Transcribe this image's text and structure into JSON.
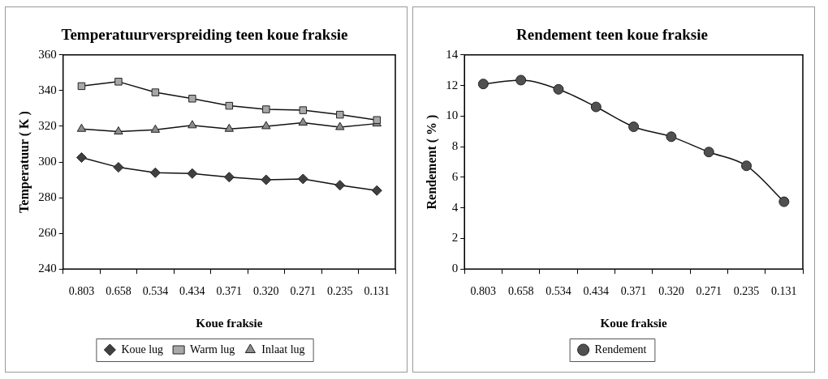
{
  "chart_data": [
    {
      "type": "line",
      "title": "Temperatuurverspreiding teen koue fraksie",
      "xlabel": "Koue fraksie",
      "ylabel": "Temperatuur ( K )",
      "categories": [
        "0.803",
        "0.658",
        "0.534",
        "0.434",
        "0.371",
        "0.320",
        "0.271",
        "0.235",
        "0.131"
      ],
      "series": [
        {
          "name": "Koue lug",
          "color": "#404040",
          "marker": "diamond",
          "values": [
            302.5,
            297,
            294,
            293.5,
            291.5,
            290,
            290.5,
            287,
            284
          ]
        },
        {
          "name": "Warm lug",
          "color": "#a8a8a8",
          "marker": "square",
          "values": [
            342.5,
            345,
            339,
            335.5,
            331.5,
            329.5,
            329,
            326.5,
            323.5
          ]
        },
        {
          "name": "Inlaat lug",
          "color": "#8c8c8c",
          "marker": "triangle",
          "values": [
            318.5,
            317,
            318,
            320.5,
            318.5,
            320,
            322,
            319.5,
            321.5
          ]
        }
      ],
      "ylim": [
        240,
        360
      ],
      "yticks": [
        240,
        260,
        280,
        300,
        320,
        340,
        360
      ],
      "grid": false,
      "legend": "bottom"
    },
    {
      "type": "line",
      "title": "Rendement teen koue fraksie",
      "xlabel": "Koue fraksie",
      "ylabel": "Rendement ( % )",
      "categories": [
        "0.803",
        "0.658",
        "0.534",
        "0.434",
        "0.371",
        "0.320",
        "0.271",
        "0.235",
        "0.131"
      ],
      "series": [
        {
          "name": "Rendement",
          "color": "#505050",
          "marker": "circle",
          "values": [
            12.1,
            12.35,
            11.75,
            10.6,
            9.3,
            8.65,
            7.65,
            6.75,
            4.4
          ]
        }
      ],
      "ylim": [
        0,
        14
      ],
      "yticks": [
        0,
        2,
        4,
        6,
        8,
        10,
        12,
        14
      ],
      "grid": false,
      "legend": "bottom"
    }
  ]
}
